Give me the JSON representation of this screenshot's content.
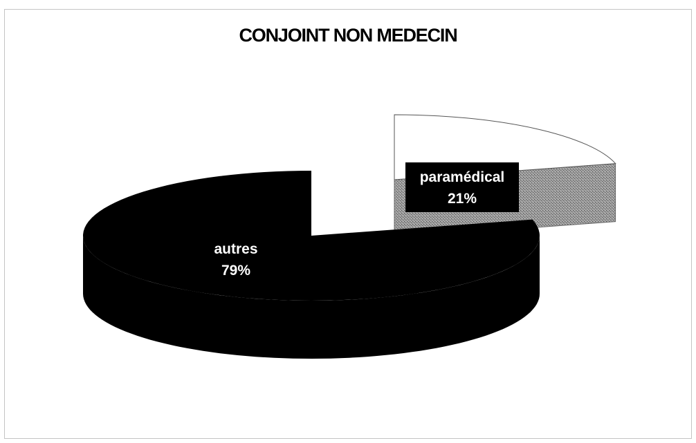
{
  "chart_data": {
    "type": "pie",
    "title": "CONJOINT NON MEDECIN",
    "slices": [
      {
        "label": "autres",
        "value": 79,
        "display": "79%",
        "color": "#000000",
        "label_color": "#ffffff"
      },
      {
        "label": "paramédical",
        "value": 21,
        "display": "21%",
        "color": "#ffffff",
        "side_color": "#8a8a8a",
        "label_color": "#ffffff",
        "label_box": "#000000"
      }
    ],
    "style": "3d-exploded",
    "legend": "none"
  }
}
